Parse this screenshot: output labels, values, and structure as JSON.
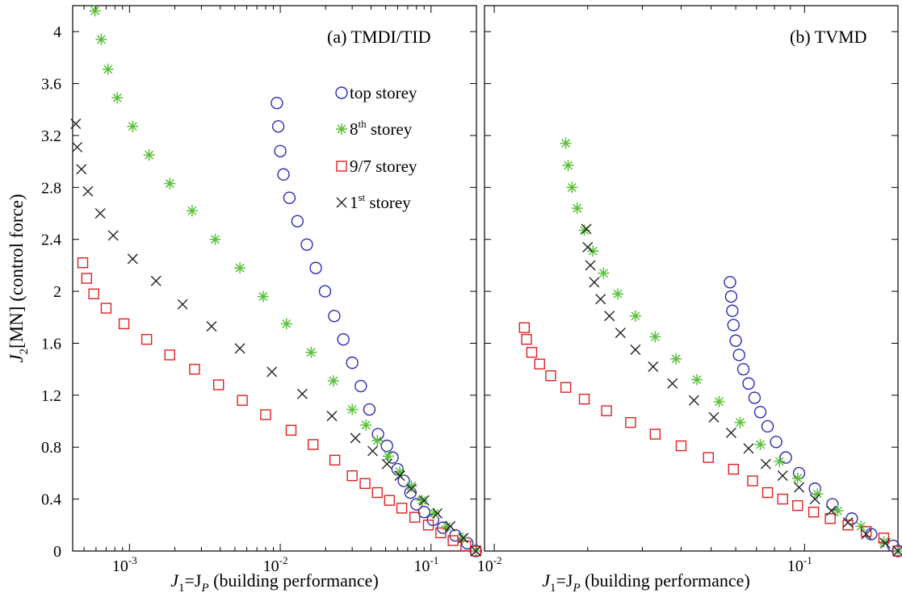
{
  "y_axis": {
    "label_prefix": "J",
    "label_sub": "2",
    "label_rest": "[MN]  (control force)",
    "ylim": [
      0,
      4.2
    ],
    "ticks": [
      0,
      0.4,
      0.8,
      1.2,
      1.6,
      2,
      2.4,
      2.8,
      3.2,
      3.6,
      4
    ],
    "tick_labels": [
      "0",
      "0.4",
      "0.8",
      "1.2",
      "1.6",
      "2",
      "2.4",
      "2.8",
      "3.2",
      "3.6",
      "4"
    ]
  },
  "x_axis": {
    "label_j": "J",
    "label_sub1": "1",
    "label_eq": "=J",
    "label_subP": "P",
    "label_rest": "  (building performance)",
    "scale": "log"
  },
  "legend": {
    "placement": "upper-right of panel (a)",
    "entries": [
      {
        "series": "top",
        "label_main": "top storey",
        "label_sup": ""
      },
      {
        "series": "8th",
        "label_main": "8",
        "label_sup": "th",
        "label_after": " storey"
      },
      {
        "series": "97",
        "label_main": "9/7 storey",
        "label_sup": ""
      },
      {
        "series": "1st",
        "label_main": "1",
        "label_sup": "st",
        "label_after": " storey"
      }
    ]
  },
  "colors": {
    "top": "#2b2bb5",
    "8th": "#58c039",
    "97": "#e02020",
    "1st": "#222222"
  },
  "chart_data": [
    {
      "type": "scatter",
      "title": "(a) TMDI/TID",
      "x_scale": "log",
      "xlim": [
        0.00042,
        0.2
      ],
      "ylim": [
        0,
        4.2
      ],
      "x_ticks": [
        {
          "value": 0.001,
          "base": "10",
          "exp": "-3"
        },
        {
          "value": 0.01,
          "base": "10",
          "exp": "-2"
        },
        {
          "value": 0.1,
          "base": "10",
          "exp": "-1"
        }
      ],
      "series": [
        {
          "name": "top storey",
          "marker": "circle",
          "color_key": "top",
          "x": [
            0.0095,
            0.0097,
            0.01,
            0.0105,
            0.0115,
            0.013,
            0.015,
            0.0172,
            0.0198,
            0.0228,
            0.0262,
            0.03,
            0.0342,
            0.039,
            0.0445,
            0.051,
            0.0555,
            0.06,
            0.066,
            0.073,
            0.08,
            0.09,
            0.103,
            0.12,
            0.145,
            0.174,
            0.198
          ],
          "y": [
            3.45,
            3.27,
            3.08,
            2.9,
            2.72,
            2.54,
            2.36,
            2.18,
            2.0,
            1.81,
            1.63,
            1.45,
            1.27,
            1.09,
            0.9,
            0.81,
            0.72,
            0.63,
            0.54,
            0.45,
            0.36,
            0.3,
            0.24,
            0.18,
            0.12,
            0.06,
            0.0
          ]
        },
        {
          "name": "8th storey",
          "marker": "asterisk",
          "color_key": "8th",
          "x": [
            0.00059,
            0.00065,
            0.00072,
            0.00083,
            0.00105,
            0.00135,
            0.00185,
            0.0026,
            0.0037,
            0.0054,
            0.0077,
            0.011,
            0.016,
            0.0225,
            0.03,
            0.037,
            0.044,
            0.052,
            0.062,
            0.074,
            0.087,
            0.105,
            0.127,
            0.162,
            0.198
          ],
          "y": [
            4.16,
            3.94,
            3.71,
            3.49,
            3.27,
            3.05,
            2.83,
            2.62,
            2.4,
            2.18,
            1.96,
            1.75,
            1.53,
            1.31,
            1.09,
            0.97,
            0.85,
            0.73,
            0.61,
            0.5,
            0.39,
            0.29,
            0.19,
            0.1,
            0.0
          ]
        },
        {
          "name": "9/7 storey",
          "marker": "square",
          "color_key": "97",
          "x": [
            0.00049,
            0.00052,
            0.00058,
            0.0007,
            0.00092,
            0.0013,
            0.00185,
            0.0027,
            0.0039,
            0.0056,
            0.008,
            0.0118,
            0.0165,
            0.023,
            0.03,
            0.0365,
            0.044,
            0.053,
            0.064,
            0.078,
            0.096,
            0.116,
            0.14,
            0.17,
            0.198
          ],
          "y": [
            2.22,
            2.1,
            1.98,
            1.87,
            1.75,
            1.63,
            1.51,
            1.4,
            1.28,
            1.16,
            1.05,
            0.93,
            0.82,
            0.7,
            0.58,
            0.52,
            0.45,
            0.39,
            0.33,
            0.26,
            0.2,
            0.14,
            0.08,
            0.04,
            0.0
          ]
        },
        {
          "name": "1st storey",
          "marker": "x",
          "color_key": "1st",
          "x": [
            0.00044,
            0.00045,
            0.00048,
            0.00053,
            0.00064,
            0.00078,
            0.00105,
            0.0015,
            0.00225,
            0.0035,
            0.0054,
            0.0088,
            0.014,
            0.022,
            0.0315,
            0.041,
            0.051,
            0.062,
            0.074,
            0.09,
            0.11,
            0.134,
            0.164,
            0.198
          ],
          "y": [
            3.29,
            3.11,
            2.94,
            2.77,
            2.6,
            2.43,
            2.25,
            2.08,
            1.9,
            1.73,
            1.56,
            1.38,
            1.21,
            1.04,
            0.87,
            0.77,
            0.67,
            0.58,
            0.48,
            0.39,
            0.29,
            0.19,
            0.1,
            0.0
          ]
        }
      ]
    },
    {
      "type": "scatter",
      "title": "(b) TVMD",
      "x_scale": "log",
      "xlim": [
        0.0093,
        0.2
      ],
      "ylim": [
        0,
        4.2
      ],
      "x_ticks": [
        {
          "value": 0.01,
          "base": "10",
          "exp": "-2"
        },
        {
          "value": 0.1,
          "base": "10",
          "exp": "-1"
        }
      ],
      "series": [
        {
          "name": "top storey",
          "marker": "circle",
          "color_key": "top",
          "x": [
            0.0575,
            0.058,
            0.0585,
            0.059,
            0.06,
            0.0615,
            0.0635,
            0.066,
            0.069,
            0.072,
            0.076,
            0.081,
            0.087,
            0.096,
            0.108,
            0.123,
            0.142,
            0.164,
            0.193,
            0.2
          ],
          "y": [
            2.07,
            1.96,
            1.85,
            1.74,
            1.62,
            1.51,
            1.4,
            1.29,
            1.18,
            1.07,
            0.96,
            0.84,
            0.72,
            0.6,
            0.48,
            0.36,
            0.25,
            0.13,
            0.04,
            0.0
          ]
        },
        {
          "name": "8th storey",
          "marker": "asterisk",
          "color_key": "8th",
          "x": [
            0.017,
            0.0173,
            0.0178,
            0.0185,
            0.0195,
            0.0208,
            0.0225,
            0.025,
            0.0285,
            0.033,
            0.0385,
            0.045,
            0.053,
            0.062,
            0.072,
            0.083,
            0.095,
            0.11,
            0.128,
            0.152,
            0.18,
            0.2
          ],
          "y": [
            3.14,
            2.97,
            2.8,
            2.64,
            2.47,
            2.31,
            2.14,
            1.98,
            1.81,
            1.65,
            1.48,
            1.32,
            1.15,
            0.99,
            0.82,
            0.69,
            0.56,
            0.44,
            0.31,
            0.19,
            0.07,
            0.0
          ]
        },
        {
          "name": "9/7 storey",
          "marker": "square",
          "color_key": "97",
          "x": [
            0.0125,
            0.0127,
            0.0132,
            0.014,
            0.0152,
            0.017,
            0.0195,
            0.023,
            0.0275,
            0.033,
            0.04,
            0.049,
            0.059,
            0.068,
            0.076,
            0.085,
            0.095,
            0.107,
            0.121,
            0.138,
            0.158,
            0.18,
            0.2
          ],
          "y": [
            1.72,
            1.63,
            1.53,
            1.44,
            1.35,
            1.26,
            1.17,
            1.08,
            0.99,
            0.9,
            0.81,
            0.72,
            0.63,
            0.54,
            0.45,
            0.4,
            0.35,
            0.3,
            0.25,
            0.2,
            0.15,
            0.1,
            0.0
          ]
        },
        {
          "name": "1st storey",
          "marker": "x",
          "color_key": "1st",
          "x": [
            0.0198,
            0.02,
            0.0204,
            0.021,
            0.022,
            0.0235,
            0.0255,
            0.0285,
            0.0325,
            0.0375,
            0.044,
            0.051,
            0.058,
            0.066,
            0.075,
            0.085,
            0.096,
            0.108,
            0.122,
            0.138,
            0.158,
            0.182,
            0.2
          ],
          "y": [
            2.48,
            2.34,
            2.2,
            2.07,
            1.94,
            1.81,
            1.68,
            1.55,
            1.42,
            1.29,
            1.16,
            1.03,
            0.91,
            0.79,
            0.67,
            0.58,
            0.49,
            0.4,
            0.31,
            0.22,
            0.13,
            0.06,
            0.0
          ]
        }
      ]
    }
  ]
}
